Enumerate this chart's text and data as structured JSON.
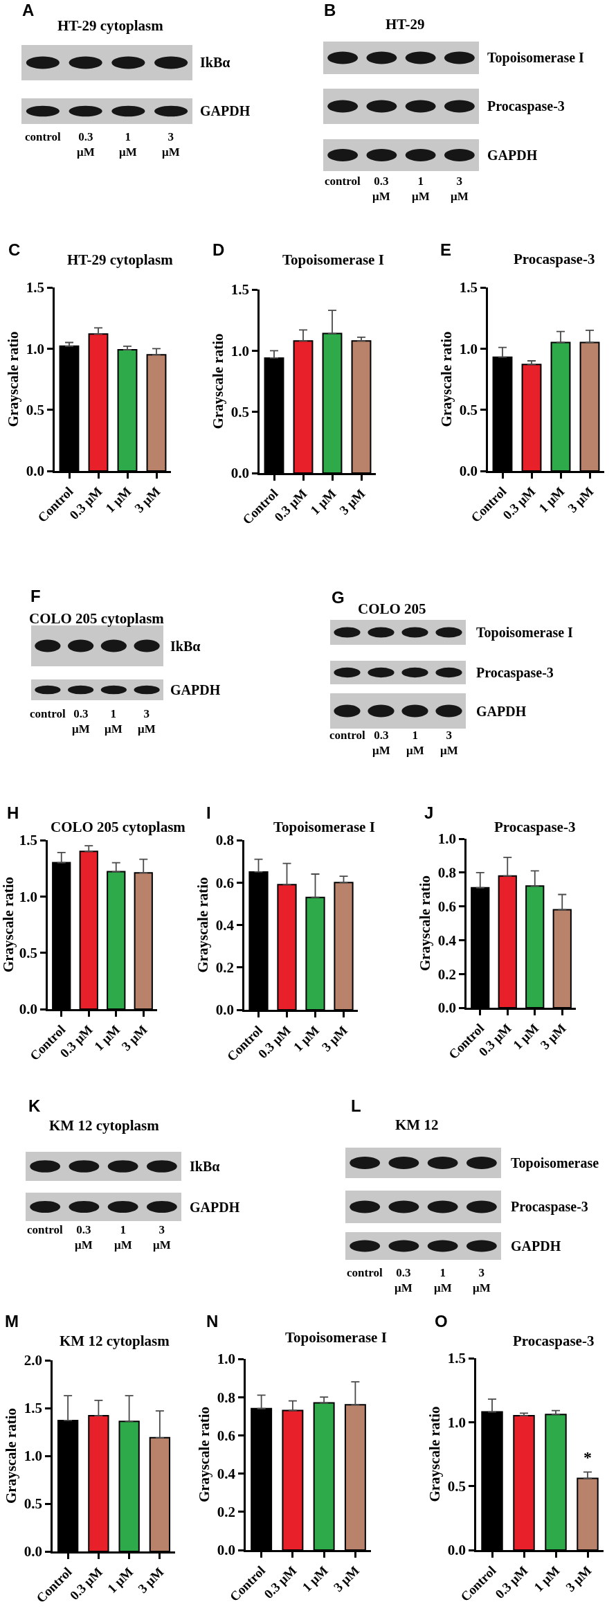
{
  "chart_data": [
    {
      "type": "other",
      "title": "HT-29 cytoplasm",
      "categories": [
        "control",
        "0.3 μM",
        "1 μM",
        "3 μM"
      ],
      "y_categories": [
        "IkBα",
        "GAPDH"
      ],
      "annotations": [
        "A"
      ]
    },
    {
      "type": "other",
      "title": "HT-29",
      "categories": [
        "control",
        "0.3 μM",
        "1 μM",
        "3 μM"
      ],
      "y_categories": [
        "Topoisomerase I",
        "Procaspase-3",
        "GAPDH"
      ],
      "annotations": [
        "B"
      ]
    },
    {
      "type": "bar",
      "title": "HT-29 cytoplasm",
      "ylabel": "Grayscale ratio",
      "categories": [
        "Control",
        "0.3 μM",
        "1 μM",
        "3 μM"
      ],
      "values": [
        1.02,
        1.12,
        0.99,
        0.95
      ],
      "colors": [
        "#000000",
        "#e8202a",
        "#2eaa4b",
        "#b9826a"
      ],
      "errors": [
        [
          1.02,
          1.05
        ],
        [
          1.12,
          1.17
        ],
        [
          0.99,
          1.02
        ],
        [
          0.95,
          1.0
        ]
      ],
      "ylim": [
        0,
        1.5
      ],
      "yticks": [
        {
          "value": 0,
          "label": "0.0"
        },
        0.5,
        {
          "value": 1,
          "label": "1.0"
        },
        1.5
      ],
      "annotations": [
        "C"
      ]
    },
    {
      "type": "bar",
      "title": "Topoisomerase I",
      "ylabel": "Grayscale ratio",
      "categories": [
        "Control",
        "0.3 μM",
        "1 μM",
        "3 μM"
      ],
      "values": [
        0.94,
        1.08,
        1.14,
        1.08
      ],
      "colors": [
        "#000000",
        "#e8202a",
        "#2eaa4b",
        "#b9826a"
      ],
      "errors": [
        [
          0.94,
          1.0
        ],
        [
          1.08,
          1.17
        ],
        [
          1.14,
          1.33
        ],
        [
          1.08,
          1.11
        ]
      ],
      "ylim": [
        0,
        1.5
      ],
      "yticks": [
        {
          "value": 0,
          "label": "0.0"
        },
        0.5,
        {
          "value": 1,
          "label": "1.0"
        },
        1.5
      ],
      "annotations": [
        "D"
      ]
    },
    {
      "type": "bar",
      "title": "Procaspase-3",
      "ylabel": "Grayscale ratio",
      "categories": [
        "Control",
        "0.3 μM",
        "1 μM",
        "3 μM"
      ],
      "values": [
        0.93,
        0.87,
        1.05,
        1.05
      ],
      "colors": [
        "#000000",
        "#e8202a",
        "#2eaa4b",
        "#b9826a"
      ],
      "errors": [
        [
          0.93,
          1.01
        ],
        [
          0.87,
          0.9
        ],
        [
          1.05,
          1.14
        ],
        [
          1.05,
          1.15
        ]
      ],
      "ylim": [
        0,
        1.5
      ],
      "yticks": [
        {
          "value": 0,
          "label": "0.0"
        },
        0.5,
        {
          "value": 1,
          "label": "1.0"
        },
        1.5
      ],
      "annotations": [
        "E"
      ]
    },
    {
      "type": "other",
      "title": "COLO 205 cytoplasm",
      "categories": [
        "control",
        "0.3 μM",
        "1 μM",
        "3 μM"
      ],
      "y_categories": [
        "IkBα",
        "GAPDH"
      ],
      "annotations": [
        "F"
      ]
    },
    {
      "type": "other",
      "title": "COLO 205",
      "categories": [
        "control",
        "0.3 μM",
        "1 μM",
        "3 μM"
      ],
      "y_categories": [
        "Topoisomerase I",
        "Procaspase-3",
        "GAPDH"
      ],
      "annotations": [
        "G"
      ]
    },
    {
      "type": "bar",
      "title": "COLO 205 cytoplasm",
      "ylabel": "Grayscale ratio",
      "categories": [
        "Control",
        "0.3 μM",
        "1 μM",
        "3 μM"
      ],
      "values": [
        1.3,
        1.4,
        1.22,
        1.21
      ],
      "colors": [
        "#000000",
        "#e8202a",
        "#2eaa4b",
        "#b9826a"
      ],
      "errors": [
        [
          1.3,
          1.39
        ],
        [
          1.4,
          1.45
        ],
        [
          1.22,
          1.3
        ],
        [
          1.21,
          1.33
        ]
      ],
      "ylim": [
        0,
        1.5
      ],
      "yticks": [
        {
          "value": 0,
          "label": "0.0"
        },
        0.5,
        {
          "value": 1,
          "label": "1.0"
        },
        1.5
      ],
      "annotations": [
        "H"
      ]
    },
    {
      "type": "bar",
      "title": "Topoisomerase I",
      "ylabel": "Grayscale ratio",
      "categories": [
        "Control",
        "0.3 μM",
        "1 μM",
        "3 μM"
      ],
      "values": [
        0.65,
        0.59,
        0.53,
        0.6
      ],
      "colors": [
        "#000000",
        "#e8202a",
        "#2eaa4b",
        "#b9826a"
      ],
      "errors": [
        [
          0.65,
          0.71
        ],
        [
          0.59,
          0.69
        ],
        [
          0.53,
          0.64
        ],
        [
          0.6,
          0.63
        ]
      ],
      "ylim": [
        0,
        0.8
      ],
      "yticks": [
        {
          "value": 0,
          "label": "0.0"
        },
        0.2,
        0.4,
        0.6,
        0.8
      ],
      "annotations": [
        "I"
      ]
    },
    {
      "type": "bar",
      "title": "Procaspase-3",
      "ylabel": "Grayscale ratio",
      "categories": [
        "Control",
        "0.3 μM",
        "1 μM",
        "3 μM"
      ],
      "values": [
        0.71,
        0.78,
        0.72,
        0.58
      ],
      "colors": [
        "#000000",
        "#e8202a",
        "#2eaa4b",
        "#b9826a"
      ],
      "errors": [
        [
          0.71,
          0.8
        ],
        [
          0.78,
          0.89
        ],
        [
          0.72,
          0.81
        ],
        [
          0.58,
          0.67
        ]
      ],
      "ylim": [
        0,
        1
      ],
      "yticks": [
        {
          "value": 0,
          "label": "0.0"
        },
        0.2,
        0.4,
        0.6,
        0.8,
        {
          "value": 1,
          "label": "1.0"
        }
      ],
      "annotations": [
        "J"
      ]
    },
    {
      "type": "other",
      "title": "KM 12 cytoplasm",
      "categories": [
        "control",
        "0.3 μM",
        "1 μM",
        "3 μM"
      ],
      "y_categories": [
        "IkBα",
        "GAPDH"
      ],
      "annotations": [
        "K"
      ]
    },
    {
      "type": "other",
      "title": "KM 12",
      "categories": [
        "control",
        "0.3 μM",
        "1 μM",
        "3 μM"
      ],
      "y_categories": [
        "Topoisomerase",
        "Procaspase-3",
        "GAPDH"
      ],
      "annotations": [
        "L"
      ]
    },
    {
      "type": "bar",
      "title": "KM 12 cytoplasm",
      "ylabel": "Grayscale ratio",
      "categories": [
        "Control",
        "0.3 μM",
        "1 μM",
        "3 μM"
      ],
      "values": [
        1.37,
        1.42,
        1.36,
        1.19
      ],
      "colors": [
        "#000000",
        "#e8202a",
        "#2eaa4b",
        "#b9826a"
      ],
      "errors": [
        [
          1.37,
          1.63
        ],
        [
          1.42,
          1.58
        ],
        [
          1.36,
          1.63
        ],
        [
          1.19,
          1.47
        ]
      ],
      "ylim": [
        0,
        2
      ],
      "yticks": [
        {
          "value": 0,
          "label": "0.0"
        },
        0.5,
        {
          "value": 1,
          "label": "1.0"
        },
        1.5,
        {
          "value": 2,
          "label": "2.0"
        }
      ],
      "annotations": [
        "M"
      ]
    },
    {
      "type": "bar",
      "title": "Topoisomerase I",
      "ylabel": "Grayscale ratio",
      "categories": [
        "Control",
        "0.3 μM",
        "1 μM",
        "3 μM"
      ],
      "values": [
        0.74,
        0.73,
        0.77,
        0.76
      ],
      "colors": [
        "#000000",
        "#e8202a",
        "#2eaa4b",
        "#b9826a"
      ],
      "errors": [
        [
          0.74,
          0.81
        ],
        [
          0.73,
          0.78
        ],
        [
          0.77,
          0.8
        ],
        [
          0.76,
          0.88
        ]
      ],
      "ylim": [
        0,
        1
      ],
      "yticks": [
        {
          "value": 0,
          "label": "0.0"
        },
        0.2,
        0.4,
        0.6,
        0.8,
        {
          "value": 1,
          "label": "1.0"
        }
      ],
      "annotations": [
        "N"
      ]
    },
    {
      "type": "bar",
      "title": "Procaspase-3",
      "ylabel": "Grayscale ratio",
      "categories": [
        "Control",
        "0.3 μM",
        "1 μM",
        "3 μM"
      ],
      "values": [
        1.08,
        1.05,
        1.06,
        0.56
      ],
      "colors": [
        "#000000",
        "#e8202a",
        "#2eaa4b",
        "#b9826a"
      ],
      "errors": [
        [
          1.08,
          1.18
        ],
        [
          1.05,
          1.07
        ],
        [
          1.06,
          1.09
        ],
        [
          0.56,
          0.61
        ]
      ],
      "ylim": [
        0,
        1.5
      ],
      "yticks": [
        {
          "value": 0,
          "label": "0.0"
        },
        0.5,
        {
          "value": 1,
          "label": "1.0"
        },
        1.5
      ],
      "annotations": [
        "O",
        {
          "text": "*",
          "x": "3 μM",
          "y": 0.61
        }
      ]
    }
  ]
}
